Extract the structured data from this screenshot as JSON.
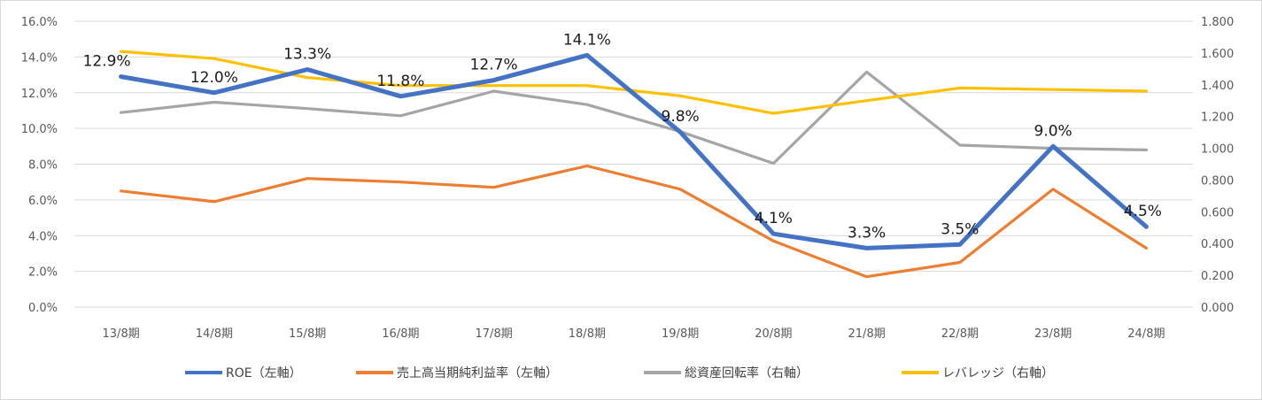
{
  "chart_data": {
    "type": "line",
    "categories": [
      "13/8期",
      "14/8期",
      "15/8期",
      "16/8期",
      "17/8期",
      "18/8期",
      "19/8期",
      "20/8期",
      "21/8期",
      "22/8期",
      "23/8期",
      "24/8期"
    ],
    "y_left": {
      "range": [
        0,
        16
      ],
      "ticks": [
        0,
        2,
        4,
        6,
        8,
        10,
        12,
        14,
        16
      ],
      "tick_labels": [
        "0.0%",
        "2.0%",
        "4.0%",
        "6.0%",
        "8.0%",
        "10.0%",
        "12.0%",
        "14.0%",
        "16.0%"
      ]
    },
    "y_right": {
      "range": [
        0,
        1.8
      ],
      "ticks": [
        0,
        0.2,
        0.4,
        0.6,
        0.8,
        1.0,
        1.2,
        1.4,
        1.6,
        1.8
      ],
      "tick_labels": [
        "0.000",
        "0.200",
        "0.400",
        "0.600",
        "0.800",
        "1.000",
        "1.200",
        "1.400",
        "1.600",
        "1.800"
      ]
    },
    "gridlines": "horizontal",
    "legend_position": "bottom",
    "series": [
      {
        "name": "ROE（左軸）",
        "axis": "left",
        "color": "#4472c4",
        "values": [
          12.9,
          12.0,
          13.3,
          11.8,
          12.7,
          14.1,
          9.8,
          4.1,
          3.3,
          3.5,
          9.0,
          4.5
        ],
        "data_labels": [
          "12.9%",
          "12.0%",
          "13.3%",
          "11.8%",
          "12.7%",
          "14.1%",
          "9.8%",
          "4.1%",
          "3.3%",
          "3.5%",
          "9.0%",
          "4.5%"
        ]
      },
      {
        "name": "売上高当期純利益率（左軸）",
        "axis": "left",
        "color": "#ed7d31",
        "values": [
          6.5,
          5.9,
          7.2,
          7.0,
          6.7,
          7.9,
          6.6,
          3.7,
          1.7,
          2.5,
          6.6,
          3.3
        ]
      },
      {
        "name": "総資産回転率（右軸）",
        "axis": "right",
        "color": "#a5a5a5",
        "values": [
          1.225,
          1.29,
          1.25,
          1.205,
          1.36,
          1.275,
          1.105,
          0.905,
          1.48,
          1.02,
          1.0,
          0.99
        ]
      },
      {
        "name": "レバレッジ（右軸）",
        "axis": "right",
        "color": "#ffc000",
        "values": [
          1.61,
          1.565,
          1.445,
          1.395,
          1.395,
          1.395,
          1.33,
          1.22,
          1.3,
          1.38,
          1.37,
          1.36
        ]
      }
    ]
  }
}
